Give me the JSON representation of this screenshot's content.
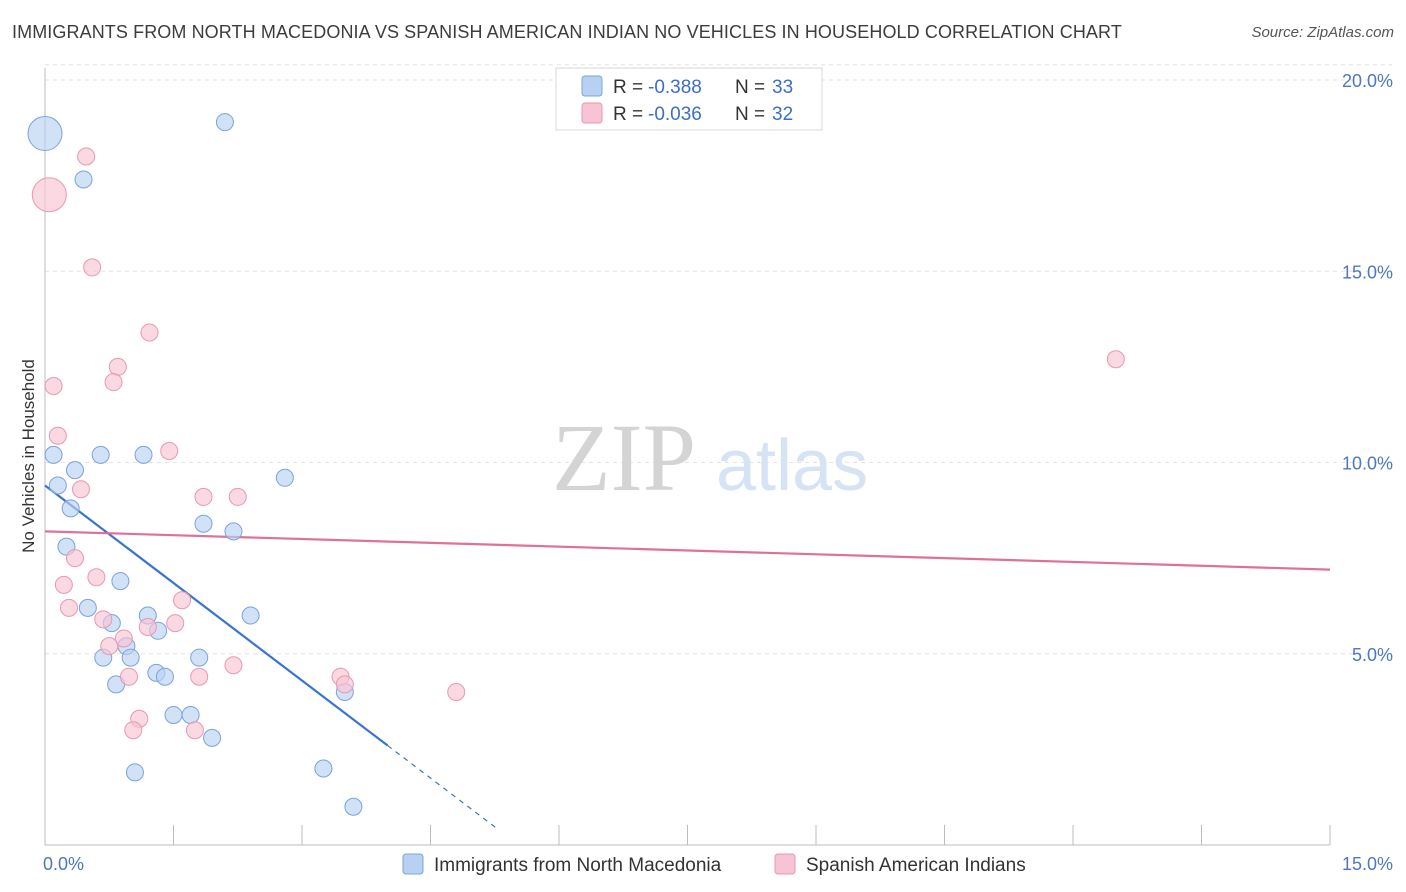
{
  "title": "IMMIGRANTS FROM NORTH MACEDONIA VS SPANISH AMERICAN INDIAN NO VEHICLES IN HOUSEHOLD CORRELATION CHART",
  "source": "Source: ZipAtlas.com",
  "watermark": {
    "zip": "ZIP",
    "atlas": "atlas"
  },
  "colors": {
    "blue_fill": "#b9d1f1",
    "blue_stroke": "#7aa3de",
    "blue_line": "#3a74cc",
    "pink_fill": "#f7c4d4",
    "pink_stroke": "#ea97b2",
    "pink_line": "#e0709a",
    "grid": "#e3e3e3",
    "tick_label": "#4a78c2"
  },
  "legend": {
    "rows": [
      {
        "r_label": "R =",
        "r_value": "-0.388",
        "n_label": "N =",
        "n_value": "33"
      },
      {
        "r_label": "R =",
        "r_value": "-0.036",
        "n_label": "N =",
        "n_value": "32"
      }
    ]
  },
  "chart_data": {
    "type": "scatter",
    "xlabel": "",
    "ylabel": "No Vehicles in Household",
    "xlim": [
      0,
      15
    ],
    "ylim": [
      0,
      20
    ],
    "x_tick_labels": [
      "0.0%",
      "15.0%"
    ],
    "y_tick_labels": [
      "5.0%",
      "10.0%",
      "15.0%",
      "20.0%"
    ],
    "y_ticks": [
      5,
      10,
      15,
      20
    ],
    "grid": true,
    "series": [
      {
        "name": "Immigrants from North Macedonia",
        "color": "blue",
        "r": -0.388,
        "n": 33,
        "trend": {
          "x0": 0.0,
          "y0": 9.4,
          "x1": 4.0,
          "y1": 2.6,
          "dash_to_x": 5.3
        },
        "points": [
          {
            "x": 0.0,
            "y": 18.6,
            "size": "large"
          },
          {
            "x": 2.1,
            "y": 18.9
          },
          {
            "x": 0.45,
            "y": 17.4
          },
          {
            "x": 0.1,
            "y": 10.2
          },
          {
            "x": 0.65,
            "y": 10.2
          },
          {
            "x": 1.15,
            "y": 10.2
          },
          {
            "x": 0.35,
            "y": 9.8
          },
          {
            "x": 0.15,
            "y": 9.4
          },
          {
            "x": 2.8,
            "y": 9.6
          },
          {
            "x": 0.3,
            "y": 8.8
          },
          {
            "x": 1.85,
            "y": 8.4
          },
          {
            "x": 2.2,
            "y": 8.2
          },
          {
            "x": 0.25,
            "y": 7.8
          },
          {
            "x": 0.88,
            "y": 6.9
          },
          {
            "x": 0.5,
            "y": 6.2
          },
          {
            "x": 1.2,
            "y": 6.0
          },
          {
            "x": 2.4,
            "y": 6.0
          },
          {
            "x": 0.78,
            "y": 5.8
          },
          {
            "x": 1.32,
            "y": 5.6
          },
          {
            "x": 0.95,
            "y": 5.2
          },
          {
            "x": 0.68,
            "y": 4.9
          },
          {
            "x": 1.0,
            "y": 4.9
          },
          {
            "x": 1.8,
            "y": 4.9
          },
          {
            "x": 1.3,
            "y": 4.5
          },
          {
            "x": 1.4,
            "y": 4.4
          },
          {
            "x": 0.83,
            "y": 4.2
          },
          {
            "x": 3.5,
            "y": 4.0
          },
          {
            "x": 1.5,
            "y": 3.4
          },
          {
            "x": 1.7,
            "y": 3.4
          },
          {
            "x": 1.95,
            "y": 2.8
          },
          {
            "x": 3.25,
            "y": 2.0
          },
          {
            "x": 1.05,
            "y": 1.9
          },
          {
            "x": 3.6,
            "y": 1.0
          }
        ]
      },
      {
        "name": "Spanish American Indians",
        "color": "pink",
        "r": -0.036,
        "n": 32,
        "trend": {
          "x0": 0.0,
          "y0": 8.2,
          "x1": 15.0,
          "y1": 7.2
        },
        "points": [
          {
            "x": 0.05,
            "y": 17.0,
            "size": "large"
          },
          {
            "x": 0.48,
            "y": 18.0
          },
          {
            "x": 0.55,
            "y": 15.1
          },
          {
            "x": 1.22,
            "y": 13.4
          },
          {
            "x": 12.5,
            "y": 12.7
          },
          {
            "x": 0.85,
            "y": 12.5
          },
          {
            "x": 0.8,
            "y": 12.1
          },
          {
            "x": 0.1,
            "y": 12.0
          },
          {
            "x": 0.15,
            "y": 10.7
          },
          {
            "x": 1.45,
            "y": 10.3
          },
          {
            "x": 0.42,
            "y": 9.3
          },
          {
            "x": 1.85,
            "y": 9.1
          },
          {
            "x": 2.25,
            "y": 9.1
          },
          {
            "x": 0.35,
            "y": 7.5
          },
          {
            "x": 0.6,
            "y": 7.0
          },
          {
            "x": 0.22,
            "y": 6.8
          },
          {
            "x": 1.6,
            "y": 6.4
          },
          {
            "x": 0.28,
            "y": 6.2
          },
          {
            "x": 0.68,
            "y": 5.9
          },
          {
            "x": 1.52,
            "y": 5.8
          },
          {
            "x": 1.2,
            "y": 5.7
          },
          {
            "x": 0.92,
            "y": 5.4
          },
          {
            "x": 0.75,
            "y": 5.2
          },
          {
            "x": 2.2,
            "y": 4.7
          },
          {
            "x": 0.98,
            "y": 4.4
          },
          {
            "x": 1.8,
            "y": 4.4
          },
          {
            "x": 3.45,
            "y": 4.4
          },
          {
            "x": 3.5,
            "y": 4.2
          },
          {
            "x": 4.8,
            "y": 4.0
          },
          {
            "x": 1.1,
            "y": 3.3
          },
          {
            "x": 1.03,
            "y": 3.0
          },
          {
            "x": 1.75,
            "y": 3.0
          }
        ]
      }
    ]
  }
}
